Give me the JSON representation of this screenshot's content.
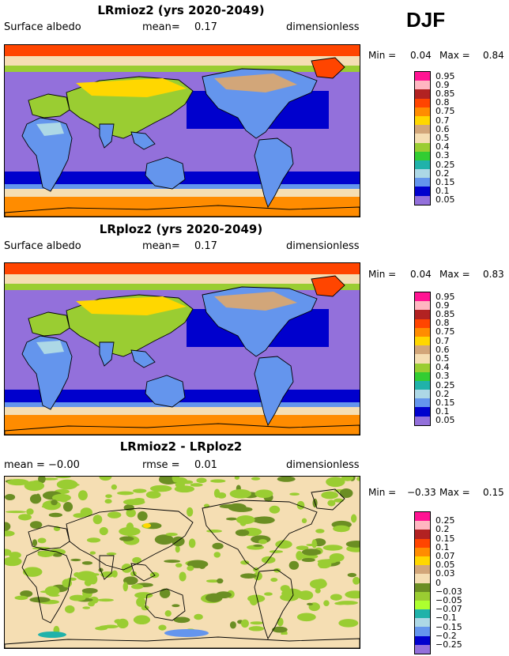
{
  "season": "DJF",
  "panels": [
    {
      "title": "LRmioz2 (yrs 2020-2049)",
      "left_label": "Surface albedo",
      "mean_label": "mean=",
      "mean_value": "0.17",
      "units": "dimensionless",
      "min_label": "Min =",
      "min_value": "0.04",
      "max_label": "Max =",
      "max_value": "0.84",
      "map_type": "absolute",
      "colorbar": {
        "levels": [
          "0.95",
          "0.9",
          "0.85",
          "0.8",
          "0.75",
          "0.7",
          "0.6",
          "0.5",
          "0.4",
          "0.3",
          "0.25",
          "0.2",
          "0.15",
          "0.1",
          "0.05"
        ],
        "colors": [
          "#ff1493",
          "#ffb6c1",
          "#b22222",
          "#ff4500",
          "#ff8c00",
          "#ffd700",
          "#d2a679",
          "#f5deb3",
          "#9acd32",
          "#32cd32",
          "#20b2aa",
          "#add8e6",
          "#6495ed",
          "#0000cd",
          "#9370db"
        ]
      }
    },
    {
      "title": "LRploz2 (yrs 2020-2049)",
      "left_label": "Surface albedo",
      "mean_label": "mean=",
      "mean_value": "0.17",
      "units": "dimensionless",
      "min_label": "Min =",
      "min_value": "0.04",
      "max_label": "Max =",
      "max_value": "0.83",
      "map_type": "absolute",
      "colorbar": {
        "levels": [
          "0.95",
          "0.9",
          "0.85",
          "0.8",
          "0.75",
          "0.7",
          "0.6",
          "0.5",
          "0.4",
          "0.3",
          "0.25",
          "0.2",
          "0.15",
          "0.1",
          "0.05"
        ],
        "colors": [
          "#ff1493",
          "#ffb6c1",
          "#b22222",
          "#ff4500",
          "#ff8c00",
          "#ffd700",
          "#d2a679",
          "#f5deb3",
          "#9acd32",
          "#32cd32",
          "#20b2aa",
          "#add8e6",
          "#6495ed",
          "#0000cd",
          "#9370db"
        ]
      }
    },
    {
      "title": "LRmioz2 - LRploz2",
      "left_label": "mean =  −0.00",
      "mean_label": "rmse =",
      "mean_value": "0.01",
      "units": "dimensionless",
      "min_label": "Min =",
      "min_value": "−0.33",
      "max_label": "Max =",
      "max_value": "0.15",
      "map_type": "difference",
      "colorbar": {
        "levels": [
          "0.25",
          "0.2",
          "0.15",
          "0.1",
          "0.07",
          "0.05",
          "0.03",
          "0",
          "−0.03",
          "−0.05",
          "−0.07",
          "−0.1",
          "−0.15",
          "−0.2",
          "−0.25"
        ],
        "colors": [
          "#ff1493",
          "#ffb6c1",
          "#b22222",
          "#ff4500",
          "#ff8c00",
          "#ffd700",
          "#d2a679",
          "#f5deb3",
          "#6b8e23",
          "#9acd32",
          "#adff2f",
          "#20b2aa",
          "#add8e6",
          "#6495ed",
          "#0000cd",
          "#9370db"
        ]
      }
    }
  ],
  "chart_data": {
    "type": "heatmap",
    "variable": "Surface albedo",
    "season": "DJF",
    "units": "dimensionless",
    "panels": [
      {
        "title": "LRmioz2 (yrs 2020-2049)",
        "mean": 0.17,
        "min": 0.04,
        "max": 0.84
      },
      {
        "title": "LRploz2 (yrs 2020-2049)",
        "mean": 0.17,
        "min": 0.04,
        "max": 0.83
      },
      {
        "title": "LRmioz2 - LRploz2",
        "mean": -0.0,
        "rmse": 0.01,
        "min": -0.33,
        "max": 0.15
      }
    ]
  }
}
